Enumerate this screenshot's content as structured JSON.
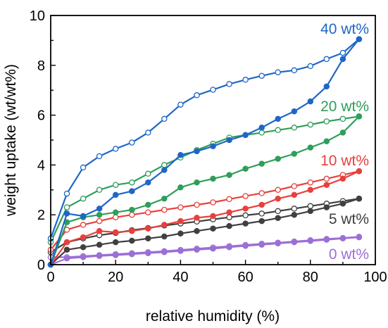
{
  "chart_data": {
    "type": "line",
    "xlabel": "relative humidity (%)",
    "ylabel": "weight uptake (wt/wt%)",
    "xlim": [
      0,
      100
    ],
    "ylim": [
      0,
      10
    ],
    "xticks": [
      "0",
      "20",
      "40",
      "60",
      "80",
      "100"
    ],
    "yticks": [
      "0",
      "2",
      "4",
      "6",
      "8",
      "10"
    ],
    "grid": false,
    "series": [
      {
        "name": "0 wt%",
        "color": "#9b6fd6",
        "adsorption": {
          "x": [
            0,
            5,
            10,
            15,
            20,
            25,
            30,
            35,
            40,
            45,
            50,
            55,
            60,
            65,
            70,
            75,
            80,
            85,
            90,
            95
          ],
          "y": [
            0.0,
            0.25,
            0.3,
            0.35,
            0.38,
            0.42,
            0.46,
            0.5,
            0.55,
            0.6,
            0.64,
            0.7,
            0.75,
            0.8,
            0.85,
            0.9,
            0.95,
            1.0,
            1.05,
            1.1
          ]
        },
        "desorption": {
          "x": [
            95,
            90,
            85,
            80,
            75,
            70,
            65,
            60,
            55,
            50,
            45,
            40,
            35,
            30,
            25,
            20,
            15,
            10,
            5,
            0
          ],
          "y": [
            1.12,
            1.07,
            1.03,
            0.98,
            0.93,
            0.88,
            0.84,
            0.79,
            0.74,
            0.69,
            0.64,
            0.59,
            0.54,
            0.5,
            0.46,
            0.42,
            0.38,
            0.34,
            0.3,
            0.3
          ]
        }
      },
      {
        "name": "5 wt%",
        "color": "#404040",
        "adsorption": {
          "x": [
            0,
            5,
            10,
            15,
            20,
            25,
            30,
            35,
            40,
            45,
            50,
            55,
            60,
            65,
            70,
            75,
            80,
            85,
            90,
            95
          ],
          "y": [
            0.0,
            0.6,
            0.7,
            0.8,
            0.9,
            0.96,
            1.05,
            1.13,
            1.25,
            1.35,
            1.45,
            1.55,
            1.65,
            1.75,
            1.87,
            2.0,
            2.15,
            2.3,
            2.45,
            2.65
          ]
        },
        "desorption": {
          "x": [
            95,
            90,
            85,
            80,
            75,
            70,
            65,
            60,
            55,
            50,
            45,
            40,
            35,
            30,
            25,
            20,
            15,
            10,
            5,
            0
          ],
          "y": [
            2.65,
            2.55,
            2.45,
            2.35,
            2.25,
            2.15,
            2.05,
            1.98,
            1.9,
            1.82,
            1.73,
            1.65,
            1.57,
            1.47,
            1.38,
            1.27,
            1.18,
            1.05,
            0.9,
            0.5
          ]
        }
      },
      {
        "name": "10 wt%",
        "color": "#e8403c",
        "adsorption": {
          "x": [
            0,
            5,
            10,
            15,
            20,
            25,
            30,
            35,
            40,
            45,
            50,
            55,
            60,
            65,
            70,
            75,
            80,
            85,
            90,
            95
          ],
          "y": [
            0.0,
            0.9,
            1.1,
            1.35,
            1.3,
            1.35,
            1.45,
            1.6,
            1.75,
            1.88,
            1.95,
            2.1,
            2.25,
            2.4,
            2.65,
            2.8,
            3.0,
            3.2,
            3.45,
            3.75
          ]
        },
        "desorption": {
          "x": [
            95,
            90,
            85,
            80,
            75,
            70,
            65,
            60,
            55,
            50,
            45,
            40,
            35,
            30,
            25,
            20,
            15,
            10,
            5,
            0
          ],
          "y": [
            3.75,
            3.6,
            3.45,
            3.3,
            3.15,
            3.0,
            2.87,
            2.75,
            2.63,
            2.5,
            2.4,
            2.3,
            2.2,
            2.1,
            2.0,
            1.9,
            1.75,
            1.6,
            1.4,
            0.6
          ]
        }
      },
      {
        "name": "20 wt%",
        "color": "#2e9e5b",
        "adsorption": {
          "x": [
            0,
            5,
            10,
            15,
            20,
            25,
            30,
            35,
            40,
            45,
            50,
            55,
            60,
            65,
            70,
            75,
            80,
            85,
            90,
            95
          ],
          "y": [
            0.0,
            1.7,
            1.9,
            2.0,
            2.1,
            2.2,
            2.4,
            2.65,
            3.1,
            3.3,
            3.45,
            3.6,
            3.85,
            4.05,
            4.25,
            4.45,
            4.7,
            4.95,
            5.3,
            5.95
          ]
        },
        "desorption": {
          "x": [
            95,
            90,
            85,
            80,
            75,
            70,
            65,
            60,
            55,
            50,
            45,
            40,
            35,
            30,
            25,
            20,
            15,
            10,
            5,
            0
          ],
          "y": [
            5.95,
            5.85,
            5.75,
            5.62,
            5.5,
            5.4,
            5.3,
            5.2,
            5.1,
            4.85,
            4.6,
            4.3,
            4.0,
            3.65,
            3.3,
            3.2,
            3.0,
            2.65,
            2.3,
            0.9
          ]
        }
      },
      {
        "name": "40 wt%",
        "color": "#1f66c7",
        "adsorption": {
          "x": [
            0,
            5,
            10,
            15,
            20,
            25,
            30,
            35,
            40,
            45,
            50,
            55,
            60,
            65,
            70,
            75,
            80,
            85,
            90,
            95
          ],
          "y": [
            0.0,
            2.05,
            1.95,
            2.25,
            2.8,
            2.95,
            3.3,
            3.8,
            4.4,
            4.55,
            4.75,
            5.0,
            5.2,
            5.5,
            5.85,
            6.15,
            6.55,
            7.15,
            8.25,
            9.05
          ]
        },
        "desorption": {
          "x": [
            95,
            90,
            85,
            80,
            75,
            70,
            65,
            60,
            55,
            50,
            45,
            40,
            35,
            30,
            25,
            20,
            15,
            10,
            5,
            0
          ],
          "y": [
            9.05,
            8.5,
            8.25,
            7.97,
            7.8,
            7.72,
            7.58,
            7.42,
            7.25,
            7.02,
            6.8,
            6.42,
            5.85,
            5.3,
            4.9,
            4.65,
            4.35,
            3.9,
            2.85,
            1.05
          ]
        }
      }
    ]
  }
}
